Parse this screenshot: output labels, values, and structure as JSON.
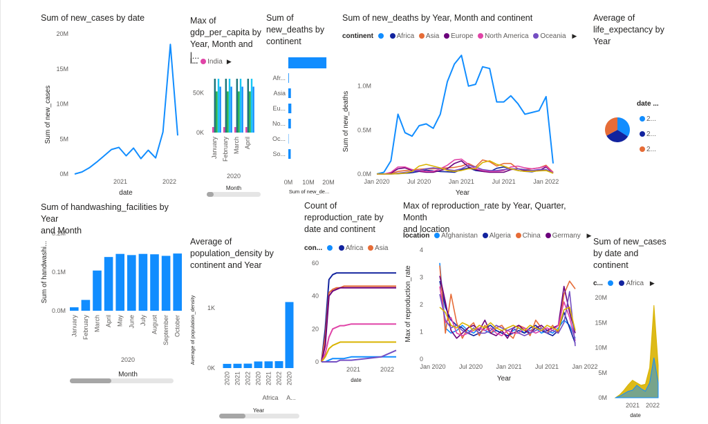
{
  "colors": {
    "blue": "#118dff",
    "darkblue": "#12239e",
    "orange": "#e66c37",
    "purple": "#6b007b",
    "pink": "#e044a7",
    "violet": "#744ec2",
    "yellow": "#d9b300",
    "teal": "#1aab40",
    "cyan": "#15c6f4",
    "green": "#197278"
  },
  "tiles": {
    "t1": {
      "title": "Sum of new_cases by date"
    },
    "t2": {
      "title": "Max of\ngdp_per_capita by\nYear, Month and l...",
      "legend_name": "l...",
      "legend_items": [
        "India"
      ]
    },
    "t3": {
      "title": "Sum of\nnew_deaths by\ncontinent"
    },
    "t4": {
      "title": "Sum of new_deaths by Year, Month and continent",
      "legend_name": "continent",
      "legend_items": [
        "Africa",
        "Asia",
        "Europe",
        "North America",
        "Oceania"
      ]
    },
    "t5": {
      "title": "Average of\nlife_expectancy by\nYear",
      "legend_name": "date ...",
      "legend_items": [
        "2...",
        "2...",
        "2..."
      ]
    },
    "t6": {
      "title": "Sum of handwashing_facilities by Year\nand Month"
    },
    "t7": {
      "title": "Average of\npopulation_density by\ncontinent and Year"
    },
    "t8": {
      "title": "Count of\nreproduction_rate by\ndate and continent",
      "legend_name": "con...",
      "legend_items": [
        "Africa",
        "Asia"
      ]
    },
    "t9": {
      "title": "Max of reproduction_rate by Year, Quarter, Month\nand location",
      "legend_name": "location",
      "legend_items": [
        "Afghanistan",
        "Algeria",
        "China",
        "Germany"
      ]
    },
    "t10": {
      "title": "Sum of new_cases\nby date and\ncontinent",
      "legend_name": "c...",
      "legend_items": [
        "Africa"
      ]
    }
  },
  "chart_data": [
    {
      "id": "t1",
      "type": "line",
      "xlabel": "date",
      "ylabel": "Sum of new_cases",
      "ylim": [
        0,
        20000000
      ],
      "yticks": [
        "0M",
        "5M",
        "10M",
        "15M",
        "20M"
      ],
      "xticks": [
        "2021",
        "2022"
      ],
      "x": [
        "2020-02",
        "2020-04",
        "2020-06",
        "2020-08",
        "2020-10",
        "2020-12",
        "2021-01",
        "2021-03",
        "2021-05",
        "2021-07",
        "2021-09",
        "2021-11",
        "2021-12",
        "2022-01",
        "2022-02"
      ],
      "values": [
        0,
        300000,
        900000,
        1700000,
        2600000,
        3500000,
        3800000,
        2600000,
        3700000,
        2200000,
        3400000,
        2300000,
        6000000,
        18500000,
        5500000
      ]
    },
    {
      "id": "t2",
      "type": "bar",
      "xlabel": "Month",
      "year_label": "2020",
      "ylim": [
        0,
        75000
      ],
      "yticks": [
        "0K",
        "50K"
      ],
      "categories": [
        "January",
        "February",
        "March",
        "April"
      ],
      "series": [
        {
          "name": "India",
          "values": [
            7000,
            7000,
            7000,
            7000
          ]
        },
        {
          "values": [
            68000,
            68000,
            68000,
            68000
          ]
        },
        {
          "values": [
            52000,
            52000,
            52000,
            52000
          ]
        },
        {
          "values": [
            68000,
            68000,
            68000,
            68000
          ]
        },
        {
          "values": [
            58000,
            58000,
            58000,
            58000
          ]
        }
      ]
    },
    {
      "id": "t3",
      "type": "bar",
      "orientation": "horizontal",
      "xlabel": "Sum of new_de...",
      "xlim": [
        0,
        20000000
      ],
      "xticks": [
        "0M",
        "10M",
        "20M"
      ],
      "categories": [
        "",
        "Afr...",
        "Asia",
        "Eu...",
        "No...",
        "Oc...",
        "So..."
      ],
      "values": [
        19000000,
        300000,
        1300000,
        1500000,
        1300000,
        150000,
        1200000
      ]
    },
    {
      "id": "t4",
      "type": "line",
      "xlabel": "Year",
      "ylabel": "Sum of new_deaths",
      "ylim": [
        0,
        1500000
      ],
      "yticks": [
        "0.0M",
        "0.5M",
        "1.0M"
      ],
      "xticks": [
        "Jan 2020",
        "Jul 2020",
        "Jan 2021",
        "Jul 2021",
        "Jan 2022"
      ],
      "x": [
        "2020-01",
        "2020-02",
        "2020-03",
        "2020-04",
        "2020-05",
        "2020-06",
        "2020-07",
        "2020-08",
        "2020-09",
        "2020-10",
        "2020-11",
        "2020-12",
        "2021-01",
        "2021-02",
        "2021-03",
        "2021-04",
        "2021-05",
        "2021-06",
        "2021-07",
        "2021-08",
        "2021-09",
        "2021-10",
        "2021-11",
        "2021-12",
        "2022-01",
        "2022-02"
      ],
      "series": [
        {
          "values": [
            0,
            20000,
            150000,
            680000,
            470000,
            430000,
            550000,
            570000,
            520000,
            680000,
            1050000,
            1250000,
            1350000,
            1000000,
            1020000,
            1220000,
            1200000,
            820000,
            820000,
            890000,
            800000,
            680000,
            700000,
            720000,
            880000,
            120000
          ]
        },
        {
          "values": [
            0,
            0,
            0,
            3000,
            8000,
            15000,
            30000,
            45000,
            35000,
            28000,
            25000,
            20000,
            50000,
            70000,
            40000,
            30000,
            25000,
            65000,
            80000,
            60000,
            40000,
            30000,
            25000,
            40000,
            50000,
            10000
          ]
        },
        {
          "values": [
            0,
            0,
            5000,
            30000,
            40000,
            45000,
            55000,
            60000,
            60000,
            65000,
            70000,
            75000,
            90000,
            120000,
            80000,
            160000,
            140000,
            90000,
            120000,
            120000,
            60000,
            50000,
            60000,
            70000,
            100000,
            20000
          ]
        },
        {
          "values": [
            0,
            0,
            10000,
            60000,
            70000,
            40000,
            30000,
            20000,
            20000,
            40000,
            60000,
            120000,
            150000,
            80000,
            50000,
            30000,
            20000,
            20000,
            20000,
            50000,
            60000,
            40000,
            30000,
            40000,
            80000,
            10000
          ]
        },
        {
          "values": [
            0,
            0,
            20000,
            80000,
            80000,
            50000,
            40000,
            30000,
            30000,
            60000,
            100000,
            160000,
            170000,
            110000,
            60000,
            40000,
            30000,
            30000,
            40000,
            80000,
            90000,
            70000,
            60000,
            70000,
            90000,
            15000
          ]
        },
        {
          "values": [
            0,
            0,
            0,
            10000,
            20000,
            30000,
            40000,
            60000,
            70000,
            60000,
            50000,
            40000,
            60000,
            100000,
            80000,
            50000,
            40000,
            40000,
            50000,
            60000,
            60000,
            50000,
            40000,
            50000,
            50000,
            10000
          ]
        },
        {
          "values": [
            0,
            0,
            0,
            5000,
            10000,
            30000,
            90000,
            110000,
            90000,
            70000,
            40000,
            30000,
            40000,
            60000,
            60000,
            130000,
            150000,
            110000,
            90000,
            60000,
            40000,
            30000,
            30000,
            35000,
            40000,
            8000
          ]
        }
      ]
    },
    {
      "id": "t5",
      "type": "pie",
      "slices": [
        {
          "value": 34
        },
        {
          "value": 33
        },
        {
          "value": 33
        }
      ]
    },
    {
      "id": "t6",
      "type": "bar",
      "xlabel": "Month",
      "year_label": "2020",
      "ylabel": "Sum of handwashi...",
      "ylim": [
        0,
        200000
      ],
      "yticks": [
        "0.0M",
        "0.1M",
        "0.2M"
      ],
      "categories": [
        "January",
        "February",
        "March",
        "April",
        "May",
        "June",
        "July",
        "August",
        "September",
        "October"
      ],
      "values": [
        9000,
        28000,
        104000,
        139000,
        147000,
        144000,
        147000,
        146000,
        142000,
        148000
      ]
    },
    {
      "id": "t7",
      "type": "bar",
      "xlabel": "Year",
      "ylabel": "Average of population_density",
      "ylim": [
        0,
        1300
      ],
      "yticks": [
        "0K",
        "1K"
      ],
      "categories": [
        "2020",
        "2021",
        "2022",
        "2020",
        "2021",
        "2022",
        "2020"
      ],
      "groups": [
        "Africa",
        "A..."
      ],
      "values": [
        70,
        72,
        74,
        110,
        112,
        115,
        1100
      ]
    },
    {
      "id": "t8",
      "type": "line",
      "xlabel": "date",
      "ylim": [
        0,
        60
      ],
      "yticks": [
        "0",
        "20",
        "40",
        "60"
      ],
      "xticks": [
        "2021",
        "2022"
      ],
      "x": [
        0,
        0.05,
        0.1,
        0.15,
        0.2,
        0.25,
        0.3,
        0.4,
        0.6,
        0.8,
        1.0
      ],
      "series": [
        {
          "values": [
            0,
            20,
            50,
            53,
            54,
            54,
            54,
            54,
            54,
            54,
            54
          ]
        },
        {
          "values": [
            0,
            15,
            42,
            44,
            45,
            45,
            46,
            46,
            46,
            46,
            46
          ]
        },
        {
          "values": [
            0,
            10,
            40,
            43,
            44,
            45,
            45,
            45,
            45,
            45,
            45
          ]
        },
        {
          "values": [
            0,
            5,
            15,
            20,
            21,
            22,
            22,
            23,
            23,
            23,
            23
          ]
        },
        {
          "values": [
            0,
            3,
            8,
            10,
            11,
            12,
            12,
            12,
            12,
            12,
            12
          ]
        },
        {
          "values": [
            0,
            0,
            1,
            2,
            2,
            2,
            2,
            3,
            3,
            3,
            3
          ]
        },
        {
          "values": [
            0,
            0,
            0,
            0,
            0,
            1,
            1,
            1,
            2,
            3,
            7
          ]
        }
      ]
    },
    {
      "id": "t9",
      "type": "line",
      "xlabel": "Year",
      "ylabel": "Max of reproduction_rate",
      "ylim": [
        0,
        4.2
      ],
      "yticks": [
        "0",
        "1",
        "2",
        "3",
        "4"
      ],
      "xticks": [
        "Jan 2020",
        "Jul 2020",
        "Jan 2021",
        "Jul 2021",
        "Jan 2022"
      ],
      "x": [
        "2020-02",
        "2020-03",
        "2020-04",
        "2020-05",
        "2020-06",
        "2020-07",
        "2020-08",
        "2020-09",
        "2020-10",
        "2020-11",
        "2020-12",
        "2021-01",
        "2021-02",
        "2021-03",
        "2021-04",
        "2021-05",
        "2021-06",
        "2021-07",
        "2021-08",
        "2021-09",
        "2021-10",
        "2021-11",
        "2021-12",
        "2022-01",
        "2022-02"
      ],
      "series": [
        {
          "values": [
            3.7,
            1.2,
            1.0,
            1.1,
            1.3,
            1.1,
            1.0,
            1.2,
            1.1,
            1.0,
            1.1,
            1.0,
            0.9,
            1.1,
            1.2,
            1.0,
            1.1,
            1.2,
            1.0,
            1.1,
            1.0,
            1.2,
            1.5,
            1.3,
            0.8
          ]
        },
        {
          "values": [
            3.0,
            2.0,
            1.5,
            1.3,
            1.2,
            1.0,
            0.9,
            1.0,
            1.2,
            1.3,
            1.1,
            1.0,
            0.9,
            1.0,
            1.1,
            1.0,
            1.2,
            1.3,
            1.1,
            1.0,
            0.9,
            1.1,
            1.8,
            1.2,
            0.6
          ]
        },
        {
          "values": [
            3.6,
            1.0,
            2.5,
            1.4,
            0.8,
            1.2,
            1.4,
            0.9,
            1.3,
            1.0,
            1.2,
            1.3,
            1.0,
            0.8,
            1.3,
            1.2,
            0.9,
            1.5,
            1.2,
            1.0,
            1.3,
            1.0,
            2.5,
            3.0,
            2.7
          ]
        },
        {
          "values": [
            3.2,
            2.2,
            1.1,
            0.8,
            1.0,
            1.2,
            1.3,
            1.1,
            1.5,
            1.0,
            0.9,
            1.1,
            0.8,
            1.2,
            1.3,
            1.1,
            1.0,
            1.2,
            1.3,
            1.1,
            1.2,
            1.3,
            2.8,
            1.8,
            1.0
          ]
        },
        {
          "values": [
            2.8,
            1.4,
            1.6,
            1.0,
            0.9,
            1.0,
            1.1,
            1.2,
            1.1,
            1.2,
            1.0,
            0.9,
            1.1,
            1.0,
            1.0,
            1.2,
            1.1,
            1.0,
            1.1,
            1.2,
            1.1,
            1.3,
            2.2,
            1.6,
            0.7
          ]
        },
        {
          "values": [
            2.5,
            1.5,
            1.2,
            1.3,
            1.1,
            1.0,
            1.2,
            1.0,
            1.0,
            1.1,
            1.3,
            1.2,
            1.1,
            1.2,
            1.0,
            0.9,
            1.0,
            1.1,
            1.2,
            1.0,
            1.1,
            1.0,
            1.4,
            2.6,
            0.5
          ]
        },
        {
          "values": [
            2.0,
            1.8,
            1.3,
            1.2,
            1.4,
            1.3,
            1.1,
            1.3,
            1.2,
            1.4,
            1.2,
            1.1,
            1.2,
            1.3,
            1.2,
            1.1,
            1.3,
            1.2,
            1.1,
            1.3,
            1.2,
            1.1,
            1.9,
            2.0,
            1.1
          ]
        }
      ]
    },
    {
      "id": "t10",
      "type": "area",
      "xlabel": "date",
      "ylim": [
        0,
        20000000
      ],
      "yticks": [
        "0M",
        "5M",
        "10M",
        "15M",
        "20M"
      ],
      "xticks": [
        "2021",
        "2022"
      ],
      "x": [
        "2020-02",
        "2020-05",
        "2020-08",
        "2020-11",
        "2021-01",
        "2021-04",
        "2021-07",
        "2021-10",
        "2021-12",
        "2022-01",
        "2022-02"
      ],
      "series": [
        {
          "values": [
            0,
            600000,
            1500000,
            2600000,
            3500000,
            3000000,
            2500000,
            2700000,
            6000000,
            18500000,
            6500000
          ]
        },
        {
          "values": [
            0,
            300000,
            800000,
            1300000,
            1500000,
            2500000,
            1800000,
            1300000,
            3000000,
            8000000,
            3000000
          ]
        }
      ]
    }
  ]
}
